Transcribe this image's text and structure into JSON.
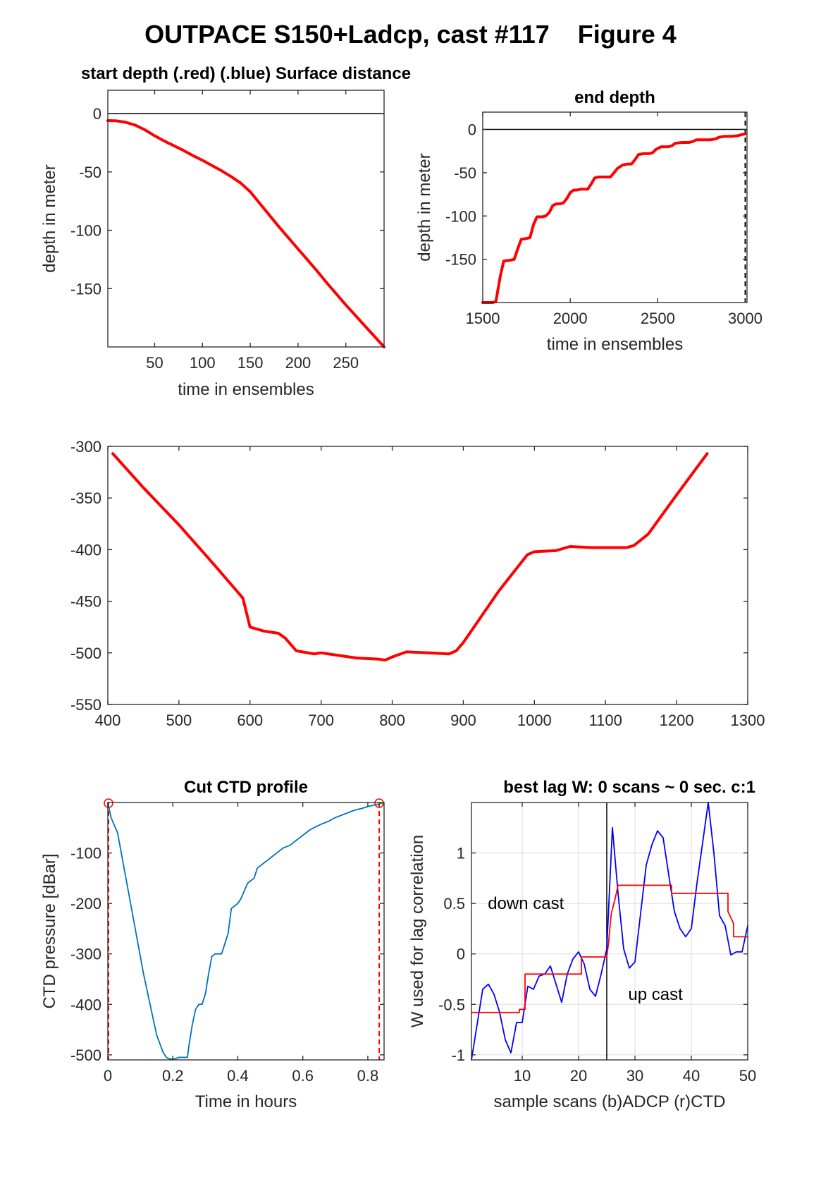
{
  "figure_title": "OUTPACE S150+Ladcp, cast #117    Figure 4",
  "colors": {
    "red": "#ff0000",
    "blue": "#0000ff",
    "ctd_blue": "#0072bd",
    "green": "#00cc00",
    "grid": "#dcdcdc",
    "axis": "#262626"
  },
  "chart_data": [
    {
      "id": "start",
      "type": "line",
      "title": "start depth (.red) (.blue) Surface distance",
      "xlabel": "time in ensembles",
      "ylabel": "depth in meter",
      "xlim": [
        1,
        290
      ],
      "ylim": [
        -200,
        20
      ],
      "xticks": [
        50,
        100,
        150,
        200,
        250
      ],
      "xtick_labels": [
        "50",
        "100",
        "150",
        "200",
        "250"
      ],
      "yticks": [
        -150,
        -100,
        -50,
        0
      ],
      "ytick_labels": [
        "-150",
        "-100",
        "-50",
        "0"
      ],
      "hline": 0,
      "series": [
        {
          "color": "#ff0000",
          "width": 4,
          "x": [
            1,
            10,
            20,
            30,
            40,
            50,
            60,
            70,
            80,
            90,
            100,
            110,
            120,
            130,
            140,
            150,
            160,
            170,
            180,
            190,
            200,
            210,
            220,
            230,
            240,
            250,
            260,
            270,
            280,
            290
          ],
          "y": [
            -6,
            -6.2,
            -7.5,
            -10,
            -14,
            -19,
            -23.5,
            -27.5,
            -31.5,
            -36,
            -40,
            -44.5,
            -49,
            -54,
            -59.5,
            -67,
            -77,
            -87,
            -97,
            -106.5,
            -116,
            -125.5,
            -135,
            -145,
            -154.5,
            -164,
            -173,
            -182,
            -191,
            -200
          ]
        }
      ]
    },
    {
      "id": "end",
      "type": "line",
      "title": "end depth",
      "xlabel": "time in ensembles",
      "ylabel": "depth in meter",
      "xlim": [
        1500,
        3010
      ],
      "ylim": [
        -200,
        20
      ],
      "xticks": [
        1500,
        2000,
        2500,
        3000
      ],
      "xtick_labels": [
        "1500",
        "2000",
        "2500",
        "3000"
      ],
      "yticks": [
        -150,
        -100,
        -50,
        0
      ],
      "ytick_labels": [
        "-150",
        "-100",
        "-50",
        "0"
      ],
      "hline": 0,
      "vline_dashed": 3000,
      "series": [
        {
          "color": "#ff0000",
          "width": 4,
          "x": [
            1500,
            1555,
            1575,
            1600,
            1620,
            1660,
            1680,
            1700,
            1720,
            1750,
            1770,
            1790,
            1810,
            1840,
            1860,
            1880,
            1900,
            1920,
            1940,
            1960,
            1980,
            2000,
            2020,
            2040,
            2060,
            2100,
            2120,
            2140,
            2160,
            2200,
            2230,
            2250,
            2270,
            2300,
            2330,
            2350,
            2370,
            2390,
            2420,
            2450,
            2470,
            2490,
            2520,
            2560,
            2580,
            2600,
            2640,
            2680,
            2700,
            2720,
            2760,
            2800,
            2830,
            2850,
            2880,
            2920,
            2950,
            2980,
            3000
          ],
          "y": [
            -200,
            -200,
            -199,
            -170,
            -152,
            -151,
            -150,
            -138,
            -127,
            -126,
            -125,
            -110,
            -101,
            -101,
            -100,
            -96,
            -88,
            -86,
            -86,
            -85,
            -80,
            -73,
            -70,
            -70,
            -69,
            -69,
            -63,
            -56,
            -55,
            -55,
            -55,
            -50,
            -45,
            -41,
            -40,
            -40,
            -35,
            -29,
            -28,
            -28,
            -27,
            -23,
            -20,
            -20,
            -19,
            -16,
            -15,
            -15,
            -14,
            -12,
            -12,
            -12,
            -11,
            -9,
            -8,
            -8,
            -7.5,
            -6,
            -5
          ]
        }
      ]
    },
    {
      "id": "middle",
      "type": "line",
      "title": "",
      "xlabel": "",
      "ylabel": "",
      "xlim": [
        400,
        1300
      ],
      "ylim": [
        -550,
        -300
      ],
      "xticks": [
        400,
        500,
        600,
        700,
        800,
        900,
        1000,
        1100,
        1200,
        1300
      ],
      "xtick_labels": [
        "400",
        "500",
        "600",
        "700",
        "800",
        "900",
        "1000",
        "1100",
        "1200",
        "1300"
      ],
      "yticks": [
        -550,
        -500,
        -450,
        -400,
        -350,
        -300
      ],
      "ytick_labels": [
        "-550",
        "-500",
        "-450",
        "-400",
        "-350",
        "-300"
      ],
      "series": [
        {
          "color": "#ff0000",
          "width": 4,
          "x": [
            407,
            450,
            500,
            550,
            590,
            600,
            620,
            640,
            650,
            665,
            690,
            700,
            720,
            750,
            780,
            790,
            800,
            820,
            850,
            880,
            890,
            900,
            920,
            950,
            990,
            1000,
            1030,
            1050,
            1080,
            1130,
            1140,
            1160,
            1200,
            1243
          ],
          "y": [
            -307,
            -340,
            -376,
            -415,
            -447,
            -475,
            -479,
            -481,
            -486,
            -498,
            -501,
            -500,
            -502,
            -505,
            -506,
            -507,
            -504,
            -499,
            -500,
            -501,
            -498,
            -490,
            -470,
            -440,
            -405,
            -402,
            -401,
            -397,
            -398,
            -398,
            -396,
            -385,
            -347,
            -307
          ]
        }
      ]
    },
    {
      "id": "ctd",
      "type": "line",
      "title": "Cut CTD profile",
      "xlabel": "Time in hours",
      "ylabel": "CTD pressure [dBar]",
      "xlim": [
        0,
        0.85
      ],
      "ylim": [
        -510,
        0
      ],
      "xticks": [
        0,
        0.2,
        0.4,
        0.6,
        0.8
      ],
      "xtick_labels": [
        "0",
        "0.2",
        "0.4",
        "0.6",
        "0.8"
      ],
      "yticks": [
        -500,
        -400,
        -300,
        -200,
        -100
      ],
      "ytick_labels": [
        "-500",
        "-400",
        "-300",
        "-200",
        "-100"
      ],
      "vlines_dashed": [
        0,
        0.835
      ],
      "markers": [
        {
          "x": 0,
          "y": 0
        },
        {
          "x": 0.835,
          "y": 0
        }
      ],
      "series": [
        {
          "color": "#0072bd",
          "width": 1.8,
          "x": [
            0,
            0.01,
            0.03,
            0.05,
            0.07,
            0.09,
            0.11,
            0.13,
            0.15,
            0.17,
            0.18,
            0.19,
            0.2,
            0.21,
            0.22,
            0.235,
            0.245,
            0.25,
            0.26,
            0.27,
            0.28,
            0.29,
            0.3,
            0.31,
            0.32,
            0.33,
            0.35,
            0.37,
            0.38,
            0.4,
            0.41,
            0.43,
            0.45,
            0.46,
            0.48,
            0.5,
            0.52,
            0.54,
            0.56,
            0.58,
            0.6,
            0.62,
            0.64,
            0.66,
            0.68,
            0.7,
            0.72,
            0.74,
            0.76,
            0.78,
            0.8,
            0.82,
            0.835
          ],
          "y": [
            0,
            -30,
            -60,
            -130,
            -200,
            -270,
            -340,
            -400,
            -460,
            -495,
            -505,
            -508,
            -509,
            -507,
            -505,
            -505,
            -505,
            -480,
            -440,
            -410,
            -400,
            -400,
            -380,
            -340,
            -305,
            -300,
            -300,
            -260,
            -210,
            -200,
            -190,
            -160,
            -150,
            -130,
            -120,
            -110,
            -100,
            -90,
            -85,
            -75,
            -65,
            -55,
            -48,
            -42,
            -37,
            -30,
            -25,
            -20,
            -15,
            -12,
            -8,
            -5,
            -3
          ]
        }
      ]
    },
    {
      "id": "lag",
      "type": "line",
      "title": "best lag W: 0 scans ~ 0 sec.  c:1",
      "xlabel": "sample scans (b)ADCP (r)CTD",
      "ylabel": "W used for lag correlation",
      "xlim": [
        1,
        50
      ],
      "ylim": [
        -1.05,
        1.5
      ],
      "xticks": [
        10,
        20,
        30,
        40,
        50
      ],
      "xtick_labels": [
        "10",
        "20",
        "30",
        "40",
        "50"
      ],
      "yticks": [
        -1,
        -0.5,
        0,
        0.5,
        1
      ],
      "ytick_labels": [
        "-1",
        "-0.5",
        "0",
        "0.5",
        "1"
      ],
      "grid": true,
      "vline_solid": 25,
      "annotations": [
        {
          "text": "down cast",
          "x": 3.9,
          "y": 0.5
        },
        {
          "text": "up cast",
          "x": 28.8,
          "y": -0.4
        }
      ],
      "series": [
        {
          "name": "ADCP",
          "color": "#0000ff",
          "width": 1.8,
          "x": [
            1,
            2,
            3,
            4,
            5,
            6,
            7,
            8,
            9,
            10,
            11,
            12,
            13,
            14,
            15,
            16,
            17,
            18,
            19,
            20,
            21,
            22,
            23,
            24,
            25,
            26,
            27,
            28,
            29,
            30,
            31,
            32,
            33,
            34,
            35,
            36,
            37,
            38,
            39,
            40,
            41,
            42,
            43,
            44,
            45,
            46,
            47,
            48,
            49,
            50
          ],
          "y": [
            -1.05,
            -0.7,
            -0.35,
            -0.3,
            -0.4,
            -0.58,
            -0.85,
            -0.98,
            -0.68,
            -0.68,
            -0.32,
            -0.35,
            -0.22,
            -0.2,
            -0.12,
            -0.3,
            -0.48,
            -0.2,
            -0.05,
            0.02,
            -0.1,
            -0.35,
            -0.42,
            -0.2,
            0.05,
            1.25,
            0.6,
            0.05,
            -0.14,
            -0.08,
            0.4,
            0.88,
            1.08,
            1.22,
            1.15,
            0.78,
            0.42,
            0.25,
            0.17,
            0.25,
            0.7,
            1.1,
            1.5,
            1.0,
            0.38,
            0.28,
            -0.01,
            0.02,
            0.02,
            0.28
          ]
        },
        {
          "name": "CTD",
          "color": "#ff0000",
          "width": 1.8,
          "x": [
            1,
            9.5,
            9.5,
            10.5,
            10.5,
            20.5,
            20.5,
            25,
            25.3,
            25.8,
            26.5,
            27,
            36.5,
            36.5,
            46.5,
            46.5,
            47.5,
            47.5,
            50
          ],
          "y": [
            -0.58,
            -0.58,
            -0.55,
            -0.55,
            -0.2,
            -0.2,
            -0.03,
            -0.03,
            0.1,
            0.4,
            0.55,
            0.68,
            0.68,
            0.6,
            0.6,
            0.42,
            0.3,
            0.17,
            0.17
          ]
        }
      ]
    }
  ]
}
